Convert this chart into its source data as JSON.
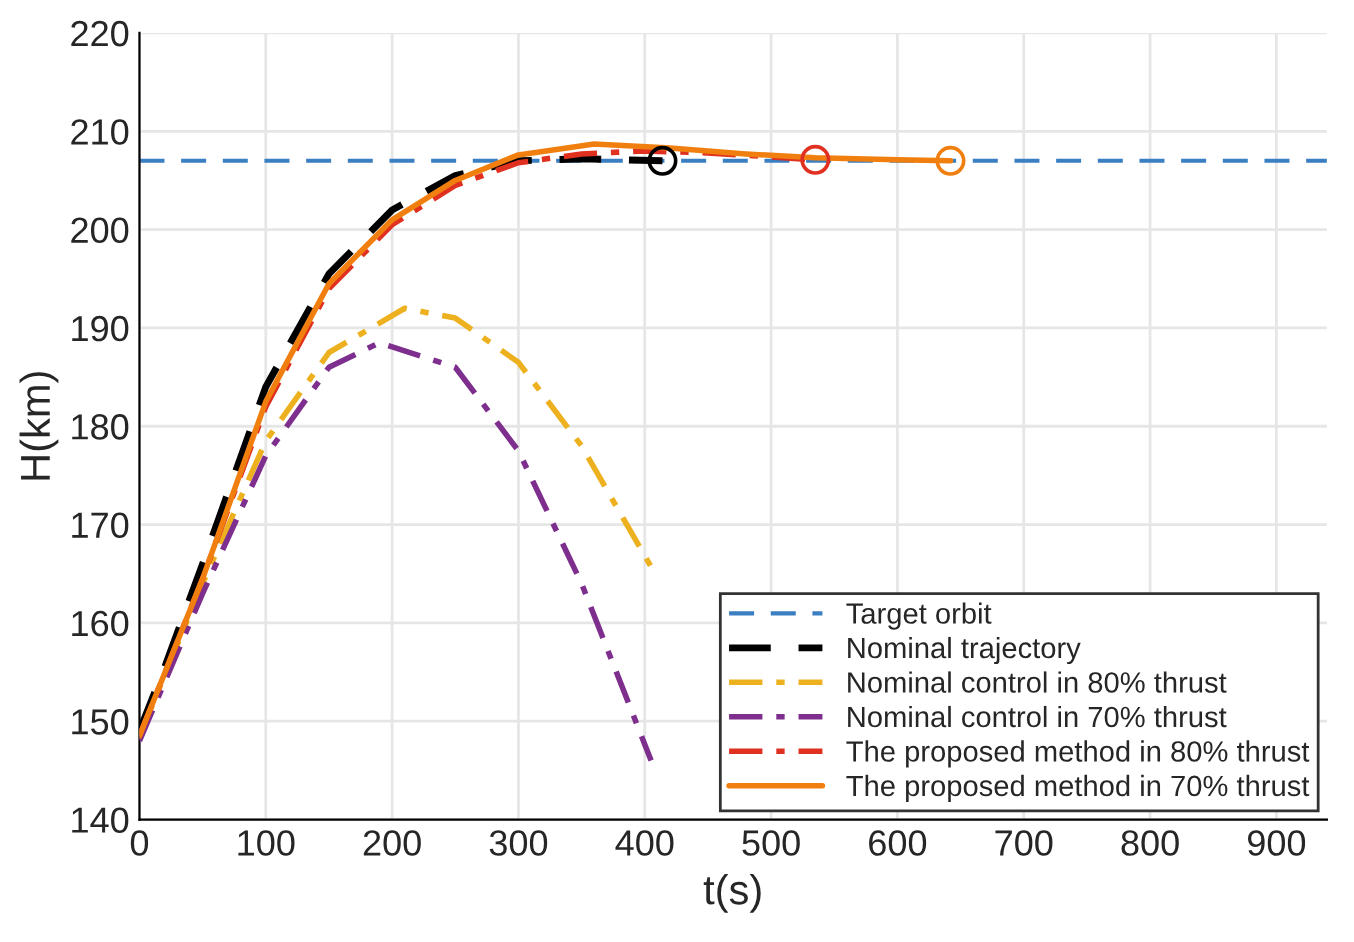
{
  "chart_data": {
    "type": "line",
    "xlabel": "t(s)",
    "ylabel": "H(km)",
    "xlim": [
      0,
      940
    ],
    "ylim": [
      140,
      220
    ],
    "xticks": [
      0,
      100,
      200,
      300,
      400,
      500,
      600,
      700,
      800,
      900
    ],
    "yticks": [
      140,
      150,
      160,
      170,
      180,
      190,
      200,
      210,
      220
    ],
    "grid": true,
    "legend": "bottom right",
    "ref_lines": [
      {
        "axis": "y",
        "value": 207,
        "label": "Target orbit",
        "color": "#3a7fc1",
        "line_style": "dashed"
      }
    ],
    "series": [
      {
        "name": "Nominal trajectory",
        "color": "#000000",
        "line_style": "dashed",
        "x": [
          0,
          20,
          50,
          100,
          150,
          200,
          250,
          300,
          350,
          414
        ],
        "values": [
          149,
          155.5,
          166,
          184,
          195.5,
          202,
          205.5,
          207,
          207.2,
          207
        ]
      },
      {
        "name": "Nominal control in 80% thrust",
        "color": "#edb120",
        "line_style": "dashdot",
        "x": [
          0,
          50,
          100,
          150,
          210,
          250,
          300,
          350,
          405
        ],
        "values": [
          148.5,
          164,
          178.5,
          187.5,
          192,
          191,
          186.5,
          178,
          165.7
        ]
      },
      {
        "name": "Nominal control in 70% thrust",
        "color": "#7e2f8e",
        "line_style": "dashdot",
        "x": [
          0,
          50,
          100,
          150,
          190,
          250,
          300,
          350,
          405
        ],
        "values": [
          148,
          163,
          177,
          186,
          188.5,
          186,
          177.5,
          164,
          146
        ]
      },
      {
        "name": "The proposed method in 80% thrust",
        "color": "#e03020",
        "line_style": "dashdot",
        "x": [
          0,
          50,
          100,
          150,
          200,
          250,
          300,
          350,
          400,
          450,
          500,
          535
        ],
        "values": [
          148.5,
          164.5,
          182,
          194,
          200.5,
          204.5,
          206.8,
          207.7,
          208,
          207.8,
          207.4,
          207.1
        ]
      },
      {
        "name": "The proposed method in 70% thrust",
        "color": "#f07f10",
        "line_style": "solid",
        "x": [
          0,
          50,
          100,
          150,
          200,
          250,
          300,
          360,
          420,
          480,
          535,
          600,
          642
        ],
        "values": [
          148.5,
          164.5,
          182.5,
          194.5,
          201,
          205,
          207.6,
          208.7,
          208.3,
          207.7,
          207.3,
          207.1,
          207
        ]
      },
      {
        "type": "scatter",
        "marker": "circle",
        "color": "#000000",
        "x": [
          414
        ],
        "values": [
          207
        ]
      },
      {
        "type": "scatter",
        "marker": "circle",
        "color": "#e03020",
        "x": [
          535
        ],
        "values": [
          207.1
        ]
      },
      {
        "type": "scatter",
        "marker": "circle",
        "color": "#f07f10",
        "x": [
          642
        ],
        "values": [
          207
        ]
      }
    ]
  }
}
